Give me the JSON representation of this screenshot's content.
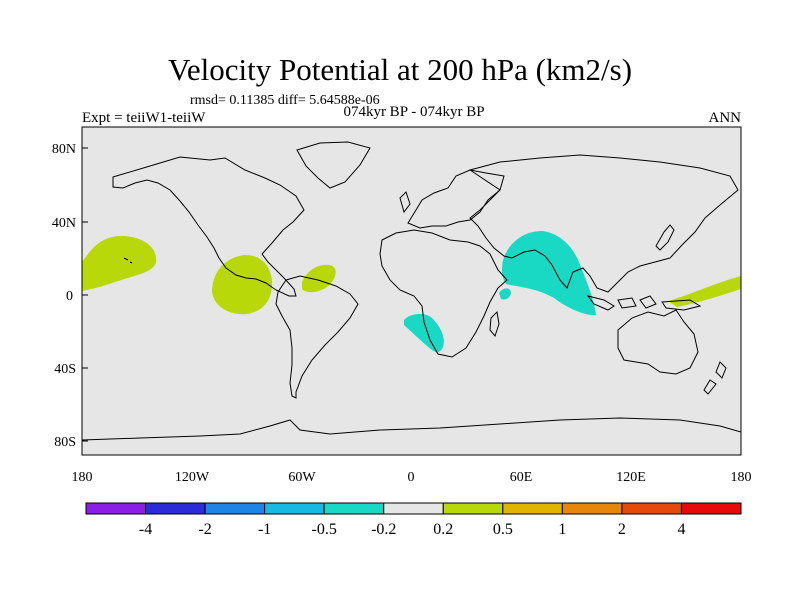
{
  "title": "Velocity Potential at 200 hPa (km2/s)",
  "stats_line": "rmsd= 0.11385 diff= 5.64588e-06",
  "experiment_label": "Expt = teiiW1-teiiW",
  "period_label": "074kyr BP - 074kyr BP",
  "season_label": "ANN",
  "colors": {
    "ocean_land_background": "#e6e6e6",
    "coastline": "#000000",
    "positive_0.2_0.5": "#b9d80a",
    "negative_-0.5_-0.2": "#1ad9c4"
  },
  "axes": {
    "lat_ticks": [
      "80N",
      "40N",
      "0",
      "40S",
      "80S"
    ],
    "lon_ticks": [
      "180",
      "120W",
      "60W",
      "0",
      "60E",
      "120E",
      "180"
    ]
  },
  "colorbar": {
    "colors": [
      "#8a1ee6",
      "#2b2bd8",
      "#1e84e6",
      "#18b9e2",
      "#1ad9c4",
      "#e6e6e6",
      "#b9d80a",
      "#e0b400",
      "#e6860a",
      "#e64a0a",
      "#e60a0a"
    ],
    "labels": [
      "-4",
      "-2",
      "-1",
      "-0.5",
      "-0.2",
      "0.2",
      "0.5",
      "1",
      "2",
      "4"
    ]
  },
  "chart_data": {
    "type": "map",
    "title": "Velocity Potential at 200 hPa (km2/s)",
    "projection": "cylindrical equidistant",
    "lon_range": [
      -180,
      180
    ],
    "lat_range": [
      -90,
      90
    ],
    "contour_levels": [
      -4,
      -2,
      -1,
      -0.5,
      -0.2,
      0.2,
      0.5,
      1,
      2,
      4
    ],
    "regions": [
      {
        "class": "0.2 to 0.5",
        "area": "central North Pacific",
        "lon": [
          -180,
          -140
        ],
        "lat": [
          5,
          32
        ]
      },
      {
        "class": "0.2 to 0.5",
        "area": "Central America / eastern Pacific",
        "lon": [
          -108,
          -76
        ],
        "lat": [
          -8,
          25
        ]
      },
      {
        "class": "0.2 to 0.5",
        "area": "northern South America",
        "lon": [
          -60,
          -41
        ],
        "lat": [
          2,
          19
        ]
      },
      {
        "class": "0.2 to 0.5",
        "area": "western equatorial Pacific",
        "lon": [
          139,
          180
        ],
        "lat": [
          -5,
          11
        ]
      },
      {
        "class": "-0.5 to -0.2",
        "area": "Arabian Sea / India / Bay of Bengal",
        "lon": [
          48,
          101
        ],
        "lat": [
          -11,
          36
        ]
      },
      {
        "class": "-0.5 to -0.2",
        "area": "southern Africa",
        "lon": [
          -4,
          20
        ],
        "lat": [
          -32,
          -10
        ]
      },
      {
        "class": "-0.5 to -0.2",
        "area": "near Horn of Africa",
        "lon": [
          48,
          54
        ],
        "lat": [
          -3,
          5
        ]
      }
    ]
  }
}
